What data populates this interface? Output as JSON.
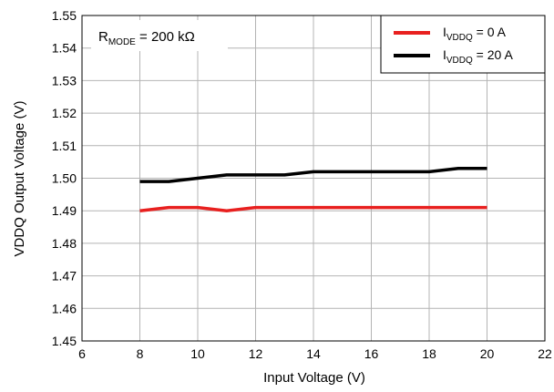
{
  "chart_data": {
    "type": "line",
    "xlabel": "Input Voltage (V)",
    "ylabel": "VDDQ Output Voltage (V)",
    "xlim": [
      6,
      22
    ],
    "ylim": [
      1.45,
      1.55
    ],
    "xticks": [
      "6",
      "8",
      "10",
      "12",
      "14",
      "16",
      "18",
      "20",
      "22"
    ],
    "yticks": [
      "1.45",
      "1.46",
      "1.47",
      "1.48",
      "1.49",
      "1.50",
      "1.51",
      "1.52",
      "1.53",
      "1.54",
      "1.55"
    ],
    "grid": true,
    "legend_position": "top-right",
    "annotation": {
      "main": "R",
      "sub": "MODE",
      "rest": " = 200 kΩ"
    },
    "series": [
      {
        "name": "I_VDDQ = 0 A",
        "name_main": "I",
        "name_sub": "VDDQ",
        "name_rest": " = 0 A",
        "color": "#e8201f",
        "x": [
          8,
          9,
          10,
          11,
          12,
          13,
          14,
          15,
          16,
          17,
          18,
          19,
          20
        ],
        "y": [
          1.49,
          1.491,
          1.491,
          1.49,
          1.491,
          1.491,
          1.491,
          1.491,
          1.491,
          1.491,
          1.491,
          1.491,
          1.491
        ]
      },
      {
        "name": "I_VDDQ = 20 A",
        "name_main": "I",
        "name_sub": "VDDQ",
        "name_rest": " = 20 A",
        "color": "#000000",
        "x": [
          8,
          9,
          10,
          11,
          12,
          13,
          14,
          15,
          16,
          17,
          18,
          19,
          20
        ],
        "y": [
          1.499,
          1.499,
          1.5,
          1.501,
          1.501,
          1.501,
          1.502,
          1.502,
          1.502,
          1.502,
          1.502,
          1.503,
          1.503
        ]
      }
    ]
  }
}
